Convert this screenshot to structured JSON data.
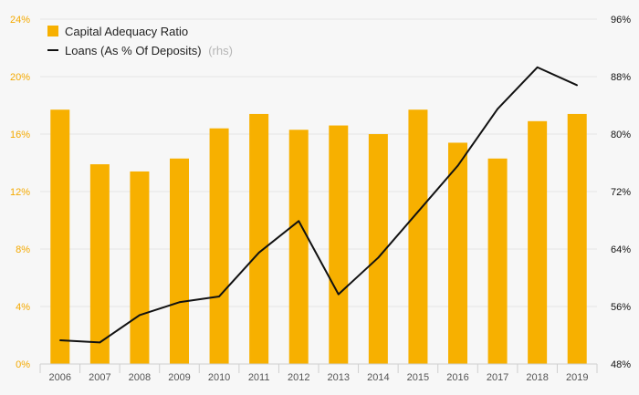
{
  "chart_data": {
    "type": "bar+line",
    "categories": [
      "2006",
      "2007",
      "2008",
      "2009",
      "2010",
      "2011",
      "2012",
      "2013",
      "2014",
      "2015",
      "2016",
      "2017",
      "2018",
      "2019"
    ],
    "series": [
      {
        "name": "Capital Adequacy Ratio",
        "type": "bar",
        "axis": "left",
        "color": "#f7b000",
        "values": [
          17.7,
          13.9,
          13.4,
          14.3,
          16.4,
          17.4,
          16.3,
          16.6,
          16.0,
          17.7,
          15.4,
          14.3,
          16.9,
          17.4
        ]
      },
      {
        "name": "Loans (As % Of Deposits)",
        "note": "(rhs)",
        "type": "line",
        "axis": "right",
        "color": "#111111",
        "values": [
          51.3,
          51.0,
          54.8,
          56.6,
          57.4,
          63.5,
          67.9,
          57.7,
          62.8,
          69.2,
          75.6,
          83.5,
          89.3,
          86.8
        ]
      }
    ],
    "left_axis": {
      "min": 0,
      "max": 24,
      "ticks": [
        "0%",
        "4%",
        "8%",
        "12%",
        "16%",
        "20%",
        "24%"
      ],
      "color": "#f4a900"
    },
    "right_axis": {
      "min": 48,
      "max": 96,
      "ticks": [
        "48%",
        "56%",
        "64%",
        "72%",
        "80%",
        "88%",
        "96%"
      ],
      "color": "#111111"
    },
    "grid": true,
    "legend_position": "top-left"
  }
}
